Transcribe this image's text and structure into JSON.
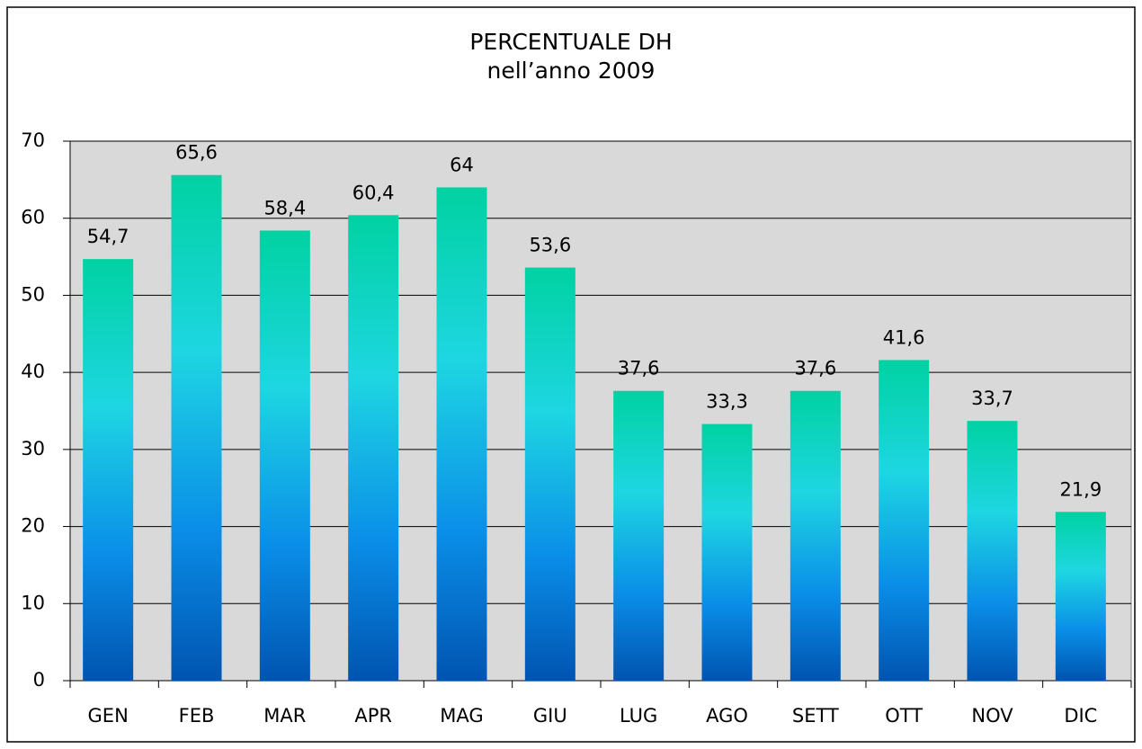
{
  "chart_data": {
    "type": "bar",
    "title": "PERCENTUALE DH",
    "subtitle": "nell’anno 2009",
    "categories": [
      "GEN",
      "FEB",
      "MAR",
      "APR",
      "MAG",
      "GIU",
      "LUG",
      "AGO",
      "SETT",
      "OTT",
      "NOV",
      "DIC"
    ],
    "values": [
      54.7,
      65.6,
      58.4,
      60.4,
      64,
      53.6,
      37.6,
      33.3,
      37.6,
      41.6,
      33.7,
      21.9
    ],
    "value_labels": [
      "54,7",
      "65,6",
      "58,4",
      "60,4",
      "64",
      "53,6",
      "37,6",
      "33,3",
      "37,6",
      "41,6",
      "33,7",
      "21,9"
    ],
    "gradient": [
      "#00d2a2",
      "#1ed6e2",
      "#0a8ee8",
      "#0054b0"
    ],
    "plot_background": "#d9d9d9",
    "ylim": [
      0,
      70
    ],
    "yticks": [
      0,
      10,
      20,
      30,
      40,
      50,
      60,
      70
    ],
    "grid": true
  }
}
